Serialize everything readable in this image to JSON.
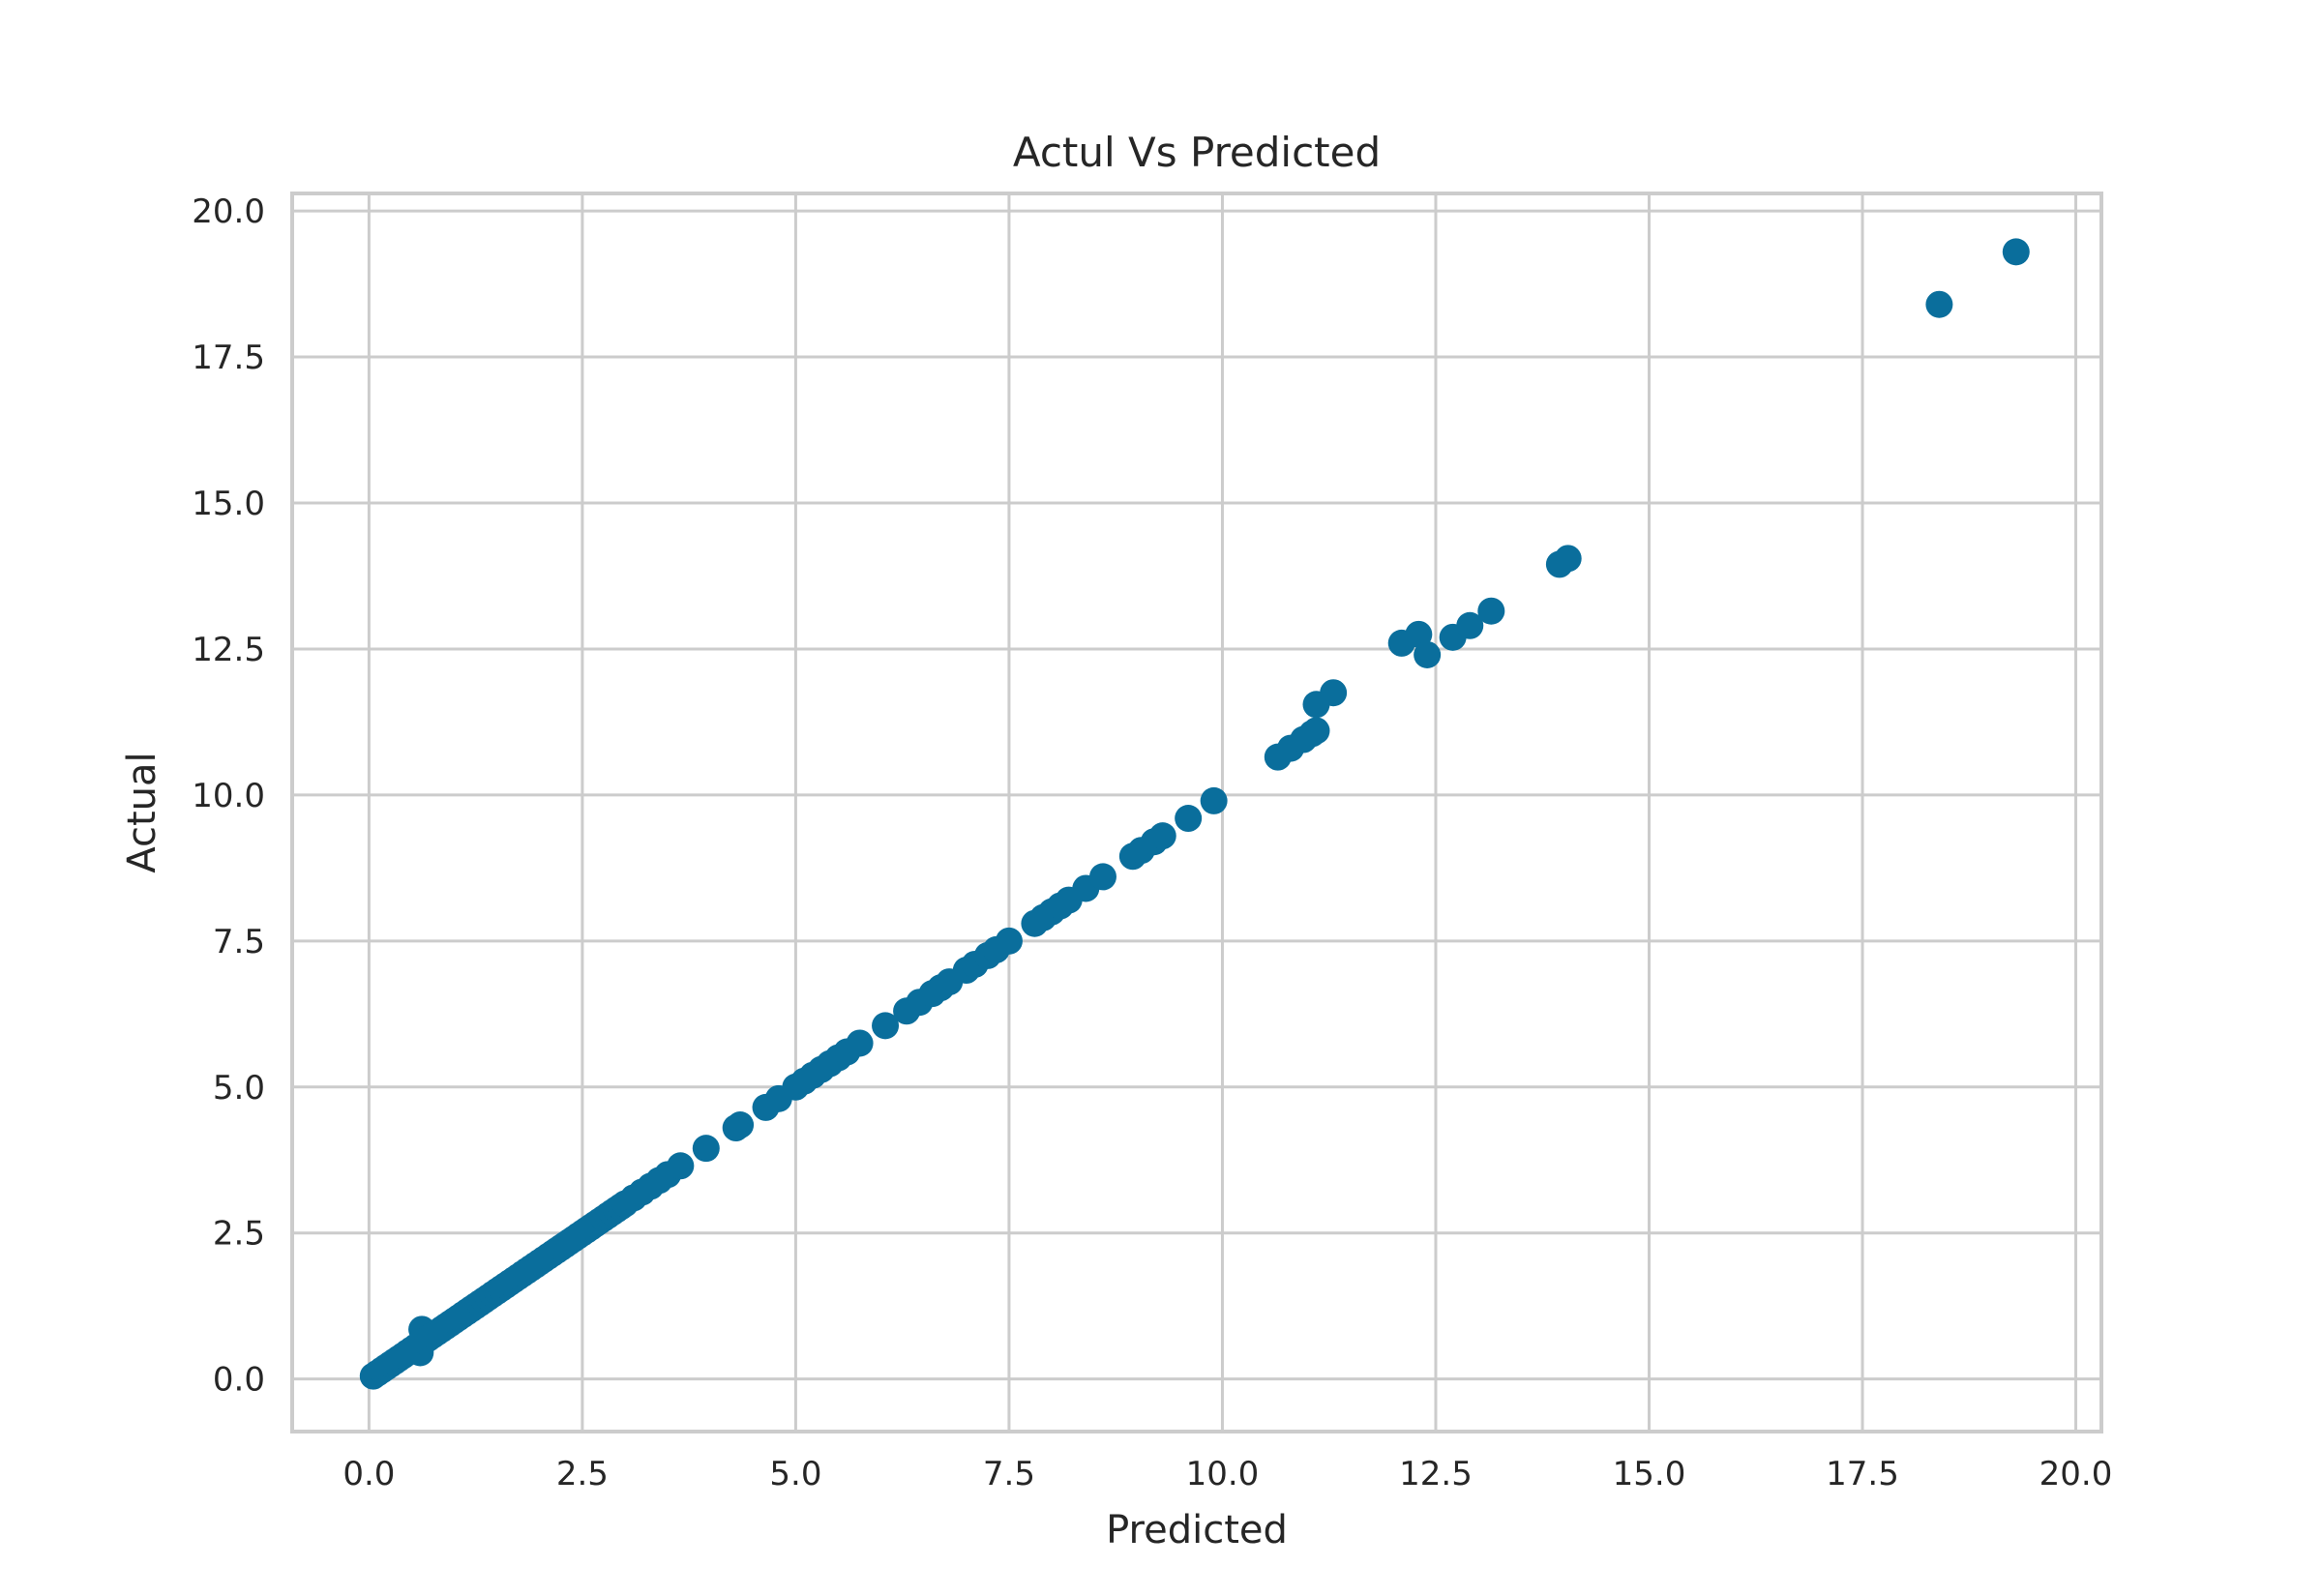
{
  "chart_data": {
    "type": "scatter",
    "title": "Actul Vs Predicted",
    "xlabel": "Predicted",
    "ylabel": "Actual",
    "xlim": [
      -0.9,
      20.3
    ],
    "ylim": [
      -0.9,
      20.3
    ],
    "xticks": [
      "0.0",
      "2.5",
      "5.0",
      "7.5",
      "10.0",
      "12.5",
      "15.0",
      "17.5",
      "20.0"
    ],
    "yticks": [
      "0.0",
      "2.5",
      "5.0",
      "7.5",
      "10.0",
      "12.5",
      "15.0",
      "17.5",
      "20.0"
    ],
    "grid": true,
    "marker_color": "#0a6e9c",
    "series": [
      {
        "points": [
          [
            0.05,
            0.05
          ],
          [
            0.1,
            0.1
          ],
          [
            0.15,
            0.15
          ],
          [
            0.2,
            0.2
          ],
          [
            0.25,
            0.25
          ],
          [
            0.3,
            0.3
          ],
          [
            0.35,
            0.35
          ],
          [
            0.4,
            0.4
          ],
          [
            0.45,
            0.45
          ],
          [
            0.5,
            0.5
          ],
          [
            0.55,
            0.55
          ],
          [
            0.6,
            0.6
          ],
          [
            0.6,
            0.45
          ],
          [
            0.62,
            0.85
          ],
          [
            0.65,
            0.65
          ],
          [
            0.7,
            0.7
          ],
          [
            0.75,
            0.75
          ],
          [
            0.8,
            0.8
          ],
          [
            0.85,
            0.85
          ],
          [
            0.9,
            0.9
          ],
          [
            0.95,
            0.95
          ],
          [
            1.0,
            1.0
          ],
          [
            1.05,
            1.05
          ],
          [
            1.1,
            1.1
          ],
          [
            1.15,
            1.15
          ],
          [
            1.2,
            1.2
          ],
          [
            1.25,
            1.25
          ],
          [
            1.3,
            1.3
          ],
          [
            1.35,
            1.35
          ],
          [
            1.4,
            1.4
          ],
          [
            1.45,
            1.45
          ],
          [
            1.5,
            1.5
          ],
          [
            1.55,
            1.55
          ],
          [
            1.6,
            1.6
          ],
          [
            1.65,
            1.65
          ],
          [
            1.7,
            1.7
          ],
          [
            1.75,
            1.75
          ],
          [
            1.8,
            1.8
          ],
          [
            1.85,
            1.85
          ],
          [
            1.9,
            1.9
          ],
          [
            1.95,
            1.95
          ],
          [
            2.0,
            2.0
          ],
          [
            2.05,
            2.05
          ],
          [
            2.1,
            2.1
          ],
          [
            2.15,
            2.15
          ],
          [
            2.2,
            2.2
          ],
          [
            2.25,
            2.25
          ],
          [
            2.3,
            2.3
          ],
          [
            2.35,
            2.35
          ],
          [
            2.4,
            2.4
          ],
          [
            2.45,
            2.45
          ],
          [
            2.5,
            2.5
          ],
          [
            2.55,
            2.55
          ],
          [
            2.6,
            2.6
          ],
          [
            2.65,
            2.65
          ],
          [
            2.7,
            2.7
          ],
          [
            2.75,
            2.75
          ],
          [
            2.8,
            2.8
          ],
          [
            2.85,
            2.85
          ],
          [
            2.9,
            2.9
          ],
          [
            2.95,
            2.95
          ],
          [
            3.0,
            3.0
          ],
          [
            3.1,
            3.1
          ],
          [
            3.2,
            3.2
          ],
          [
            3.3,
            3.3
          ],
          [
            3.4,
            3.4
          ],
          [
            3.5,
            3.5
          ],
          [
            3.65,
            3.65
          ],
          [
            3.95,
            3.95
          ],
          [
            4.3,
            4.3
          ],
          [
            4.35,
            4.35
          ],
          [
            4.65,
            4.65
          ],
          [
            4.8,
            4.8
          ],
          [
            5.0,
            5.0
          ],
          [
            5.1,
            5.1
          ],
          [
            5.2,
            5.2
          ],
          [
            5.3,
            5.3
          ],
          [
            5.4,
            5.4
          ],
          [
            5.5,
            5.5
          ],
          [
            5.6,
            5.6
          ],
          [
            5.75,
            5.75
          ],
          [
            6.05,
            6.05
          ],
          [
            6.3,
            6.3
          ],
          [
            6.45,
            6.45
          ],
          [
            6.6,
            6.6
          ],
          [
            6.7,
            6.7
          ],
          [
            6.8,
            6.8
          ],
          [
            7.0,
            7.0
          ],
          [
            7.1,
            7.1
          ],
          [
            7.25,
            7.25
          ],
          [
            7.35,
            7.35
          ],
          [
            7.5,
            7.5
          ],
          [
            7.8,
            7.8
          ],
          [
            7.9,
            7.9
          ],
          [
            8.0,
            8.0
          ],
          [
            8.1,
            8.1
          ],
          [
            8.2,
            8.2
          ],
          [
            8.4,
            8.4
          ],
          [
            8.6,
            8.6
          ],
          [
            8.95,
            8.95
          ],
          [
            9.05,
            9.05
          ],
          [
            9.2,
            9.2
          ],
          [
            9.3,
            9.3
          ],
          [
            9.6,
            9.6
          ],
          [
            9.9,
            9.9
          ],
          [
            10.65,
            10.65
          ],
          [
            10.8,
            10.8
          ],
          [
            10.95,
            10.95
          ],
          [
            11.05,
            11.05
          ],
          [
            11.1,
            11.1
          ],
          [
            11.1,
            11.55
          ],
          [
            11.3,
            11.75
          ],
          [
            12.1,
            12.6
          ],
          [
            12.3,
            12.75
          ],
          [
            12.4,
            12.4
          ],
          [
            12.7,
            12.7
          ],
          [
            12.9,
            12.9
          ],
          [
            13.15,
            13.15
          ],
          [
            13.95,
            13.95
          ],
          [
            14.05,
            14.05
          ],
          [
            18.4,
            18.4
          ],
          [
            19.3,
            19.3
          ]
        ]
      }
    ]
  }
}
